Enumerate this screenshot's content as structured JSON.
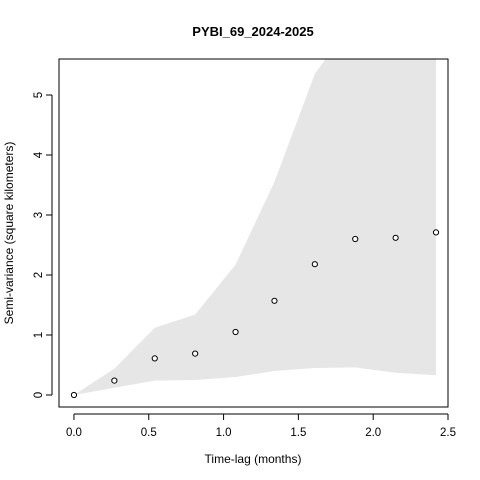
{
  "chart_data": {
    "type": "scatter",
    "title": "PYBI_69_2024-2025",
    "xlabel": "Time-lag (months)",
    "ylabel": "Semi-variance (square kilometers)",
    "xlim": [
      -0.1,
      2.5
    ],
    "ylim": [
      -0.2,
      5.6
    ],
    "xticks": [
      "0.0",
      "0.5",
      "1.0",
      "1.5",
      "2.0",
      "2.5"
    ],
    "xtick_values": [
      0.0,
      0.5,
      1.0,
      1.5,
      2.0,
      2.5
    ],
    "yticks": [
      "0",
      "1",
      "2",
      "3",
      "4",
      "5"
    ],
    "ytick_values": [
      0,
      1,
      2,
      3,
      4,
      5
    ],
    "grid": false,
    "legend": "none",
    "colors": {
      "envelope": "#e6e6e6",
      "points": "#000000"
    },
    "points": {
      "x": [
        0.0,
        0.27,
        0.54,
        0.81,
        1.08,
        1.34,
        1.61,
        1.88,
        2.15,
        2.42
      ],
      "y": [
        0.0,
        0.24,
        0.61,
        0.69,
        1.05,
        1.57,
        2.18,
        2.6,
        2.62,
        2.71
      ]
    },
    "envelope": {
      "x": [
        0.0,
        0.27,
        0.54,
        0.81,
        1.08,
        1.34,
        1.61,
        1.88,
        2.15,
        2.42
      ],
      "upper": [
        0.0,
        0.44,
        1.12,
        1.34,
        2.17,
        3.55,
        5.35,
        6.3,
        6.3,
        5.6
      ],
      "lower": [
        0.0,
        0.12,
        0.24,
        0.25,
        0.3,
        0.4,
        0.45,
        0.46,
        0.37,
        0.33
      ]
    }
  }
}
